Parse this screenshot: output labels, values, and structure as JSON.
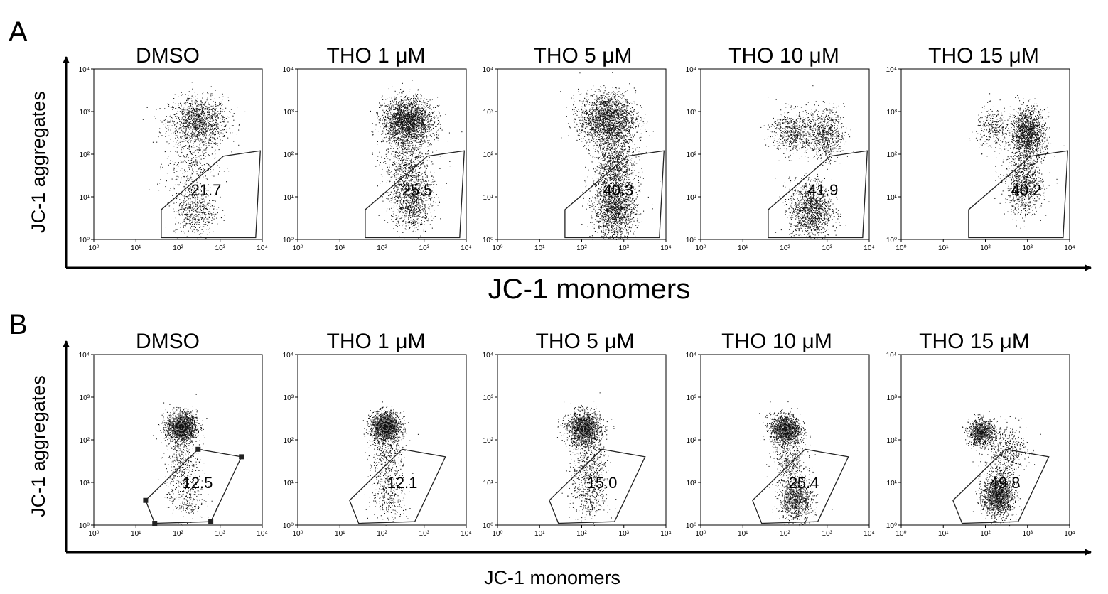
{
  "figure": {
    "panels": [
      {
        "letter": "A",
        "xlabel": "JC-1 monomers",
        "ylabel": "JC-1 aggregates",
        "plots": [
          {
            "title": "DMSO",
            "gate_value": "21.7"
          },
          {
            "title": "THO 1 μM",
            "gate_value": "25.5"
          },
          {
            "title": "THO 5 μM",
            "gate_value": "40.3"
          },
          {
            "title": "THO 10 μM",
            "gate_value": "41.9"
          },
          {
            "title": "THO 15 μM",
            "gate_value": "40.2"
          }
        ]
      },
      {
        "letter": "B",
        "xlabel": "JC-1 monomers",
        "ylabel": "JC-1 aggregates",
        "plots": [
          {
            "title": "DMSO",
            "gate_value": "12.5"
          },
          {
            "title": "THO 1 μM",
            "gate_value": "12.1"
          },
          {
            "title": "THO 5 μM",
            "gate_value": "15.0"
          },
          {
            "title": "THO 10 μM",
            "gate_value": "25.4"
          },
          {
            "title": "THO 15 μM",
            "gate_value": "49.8"
          }
        ]
      }
    ]
  },
  "chart_data": {
    "type": "scatter",
    "subtype": "flow-cytometry density dot plots",
    "x_scale": "log",
    "y_scale": "log",
    "xlim": [
      1,
      10000
    ],
    "ylim": [
      1,
      10000
    ],
    "x_ticks": [
      "10⁰",
      "10¹",
      "10²",
      "10³",
      "10⁴"
    ],
    "y_ticks": [
      "10⁰",
      "10¹",
      "10²",
      "10³",
      "10⁴"
    ],
    "colors": {
      "dots": "#111111",
      "gate": "#222222",
      "core": "#777777"
    },
    "panels": {
      "A": {
        "xlabel": "JC-1 monomers",
        "ylabel": "JC-1 aggregates",
        "gate_vertices": [
          [
            40,
            1.1
          ],
          [
            40,
            5
          ],
          [
            1200,
            90
          ],
          [
            9000,
            120
          ],
          [
            7000,
            1.1
          ]
        ],
        "plots": [
          {
            "title": "DMSO",
            "gate_percent": 21.7,
            "populations": [
              {
                "cx": 300,
                "cy": 600,
                "sx": 0.35,
                "sy": 0.28,
                "n": 1300
              },
              {
                "cx": 200,
                "cy": 60,
                "sx": 0.3,
                "sy": 0.4,
                "n": 350
              },
              {
                "cx": 250,
                "cy": 5,
                "sx": 0.25,
                "sy": 0.3,
                "n": 500
              }
            ]
          },
          {
            "title": "THO 1 μM",
            "gate_percent": 25.5,
            "populations": [
              {
                "cx": 400,
                "cy": 600,
                "sx": 0.3,
                "sy": 0.27,
                "n": 2200
              },
              {
                "cx": 400,
                "cy": 50,
                "sx": 0.28,
                "sy": 0.4,
                "n": 700
              },
              {
                "cx": 500,
                "cy": 8,
                "sx": 0.25,
                "sy": 0.35,
                "n": 850
              }
            ]
          },
          {
            "title": "THO 5 μM",
            "gate_percent": 40.3,
            "populations": [
              {
                "cx": 400,
                "cy": 700,
                "sx": 0.33,
                "sy": 0.3,
                "n": 2000
              },
              {
                "cx": 600,
                "cy": 60,
                "sx": 0.25,
                "sy": 0.45,
                "n": 1200
              },
              {
                "cx": 600,
                "cy": 5,
                "sx": 0.25,
                "sy": 0.35,
                "n": 1500
              }
            ]
          },
          {
            "title": "THO 10 μM",
            "gate_percent": 41.9,
            "populations": [
              {
                "cx": 150,
                "cy": 350,
                "sx": 0.25,
                "sy": 0.25,
                "n": 600
              },
              {
                "cx": 900,
                "cy": 300,
                "sx": 0.22,
                "sy": 0.3,
                "n": 700
              },
              {
                "cx": 400,
                "cy": 5,
                "sx": 0.25,
                "sy": 0.35,
                "n": 1300
              }
            ]
          },
          {
            "title": "THO 15 μM",
            "gate_percent": 40.2,
            "populations": [
              {
                "cx": 150,
                "cy": 400,
                "sx": 0.2,
                "sy": 0.25,
                "n": 300
              },
              {
                "cx": 1000,
                "cy": 300,
                "sx": 0.2,
                "sy": 0.3,
                "n": 1500
              },
              {
                "cx": 800,
                "cy": 20,
                "sx": 0.22,
                "sy": 0.35,
                "n": 900
              }
            ]
          }
        ]
      },
      "B": {
        "xlabel": "JC-1 monomers",
        "ylabel": "JC-1 aggregates",
        "gate_vertices": [
          [
            17,
            3.8
          ],
          [
            28,
            1.1
          ],
          [
            600,
            1.2
          ],
          [
            3200,
            40
          ],
          [
            300,
            60
          ]
        ],
        "gate_handles": true,
        "plots": [
          {
            "title": "DMSO",
            "gate_percent": 12.5,
            "populations": [
              {
                "cx": 120,
                "cy": 200,
                "sx": 0.18,
                "sy": 0.18,
                "n": 1600,
                "dense": true
              },
              {
                "cx": 120,
                "cy": 30,
                "sx": 0.2,
                "sy": 0.3,
                "n": 300
              },
              {
                "cx": 150,
                "cy": 5,
                "sx": 0.22,
                "sy": 0.3,
                "n": 280
              }
            ]
          },
          {
            "title": "THO 1 μM",
            "gate_percent": 12.1,
            "populations": [
              {
                "cx": 120,
                "cy": 200,
                "sx": 0.18,
                "sy": 0.18,
                "n": 1600,
                "dense": true
              },
              {
                "cx": 120,
                "cy": 30,
                "sx": 0.2,
                "sy": 0.3,
                "n": 300
              },
              {
                "cx": 150,
                "cy": 5,
                "sx": 0.22,
                "sy": 0.3,
                "n": 280
              }
            ]
          },
          {
            "title": "THO 5 μM",
            "gate_percent": 15.0,
            "populations": [
              {
                "cx": 110,
                "cy": 180,
                "sx": 0.2,
                "sy": 0.2,
                "n": 1500,
                "dense": true
              },
              {
                "cx": 150,
                "cy": 30,
                "sx": 0.2,
                "sy": 0.3,
                "n": 350
              },
              {
                "cx": 150,
                "cy": 5,
                "sx": 0.22,
                "sy": 0.3,
                "n": 350
              }
            ]
          },
          {
            "title": "THO 10 μM",
            "gate_percent": 25.4,
            "populations": [
              {
                "cx": 100,
                "cy": 180,
                "sx": 0.18,
                "sy": 0.18,
                "n": 1300,
                "dense": true
              },
              {
                "cx": 130,
                "cy": 30,
                "sx": 0.2,
                "sy": 0.3,
                "n": 400
              },
              {
                "cx": 180,
                "cy": 4,
                "sx": 0.2,
                "sy": 0.25,
                "n": 900,
                "dense": true
              }
            ]
          },
          {
            "title": "THO 15 μM",
            "gate_percent": 49.8,
            "populations": [
              {
                "cx": 80,
                "cy": 150,
                "sx": 0.15,
                "sy": 0.15,
                "n": 900,
                "dense": true
              },
              {
                "cx": 300,
                "cy": 60,
                "sx": 0.25,
                "sy": 0.3,
                "n": 500
              },
              {
                "cx": 200,
                "cy": 5,
                "sx": 0.18,
                "sy": 0.25,
                "n": 1500,
                "dense": true
              }
            ]
          }
        ]
      }
    }
  }
}
